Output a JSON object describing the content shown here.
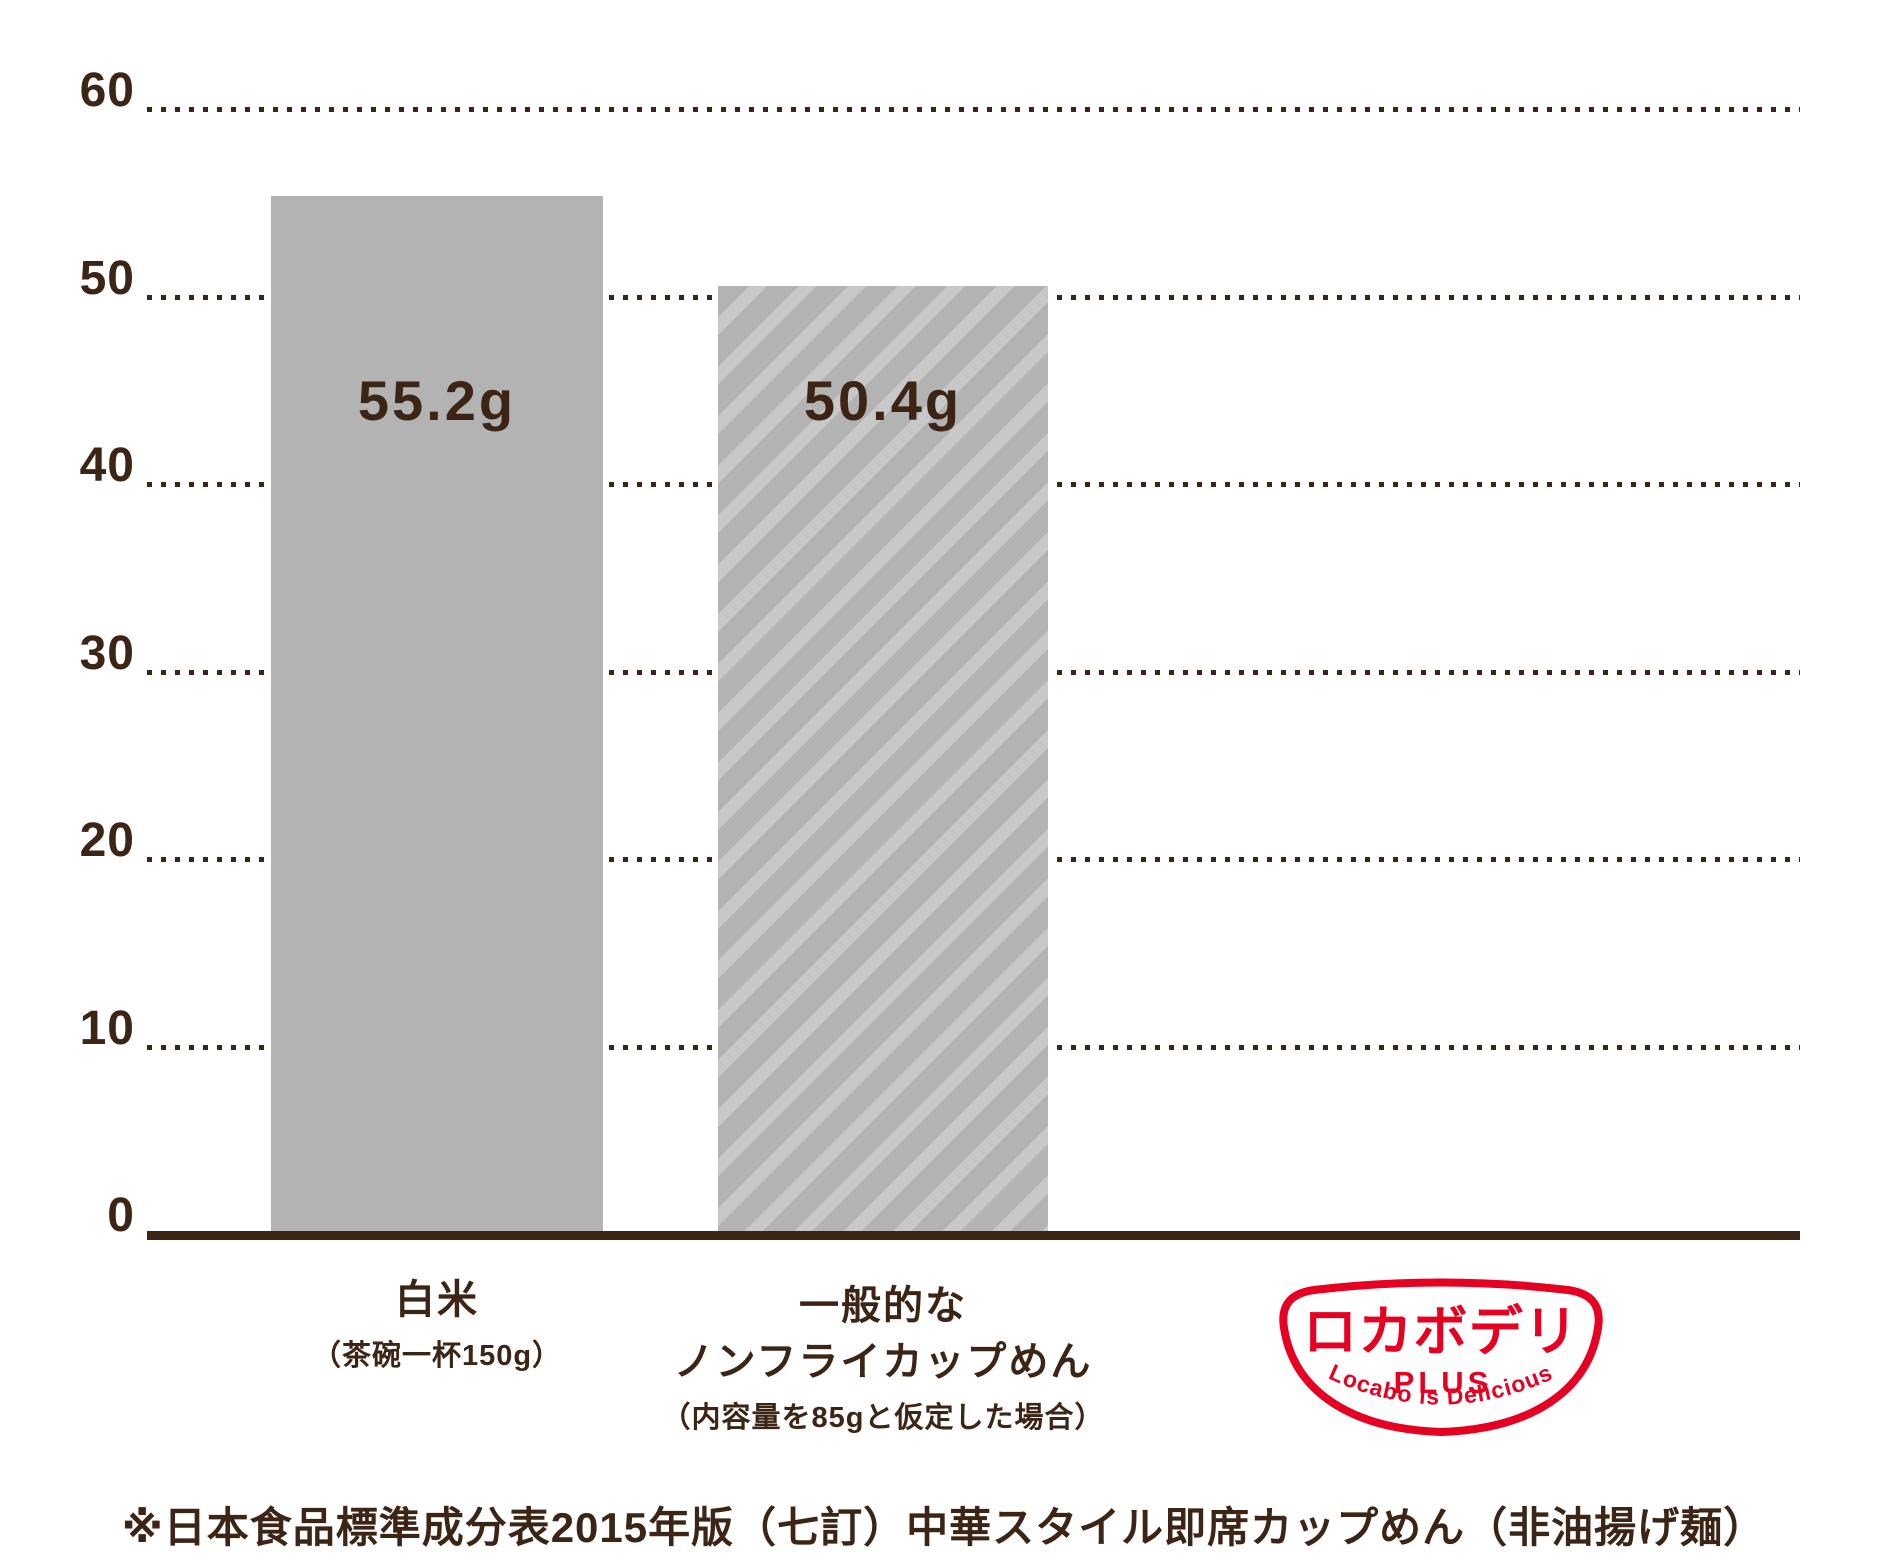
{
  "chart_data": {
    "type": "bar",
    "title": "",
    "xlabel": "",
    "ylabel": "",
    "ylim": [
      0,
      60
    ],
    "yticks": [
      60,
      50,
      40,
      30,
      20,
      10,
      0
    ],
    "grid": "horizontal-dotted",
    "legend": "none",
    "categories": [
      "白米（茶碗一杯150g）",
      "一般的なノンフライカップめん（内容量を85gと仮定した場合）"
    ],
    "values": [
      55.2,
      50.4
    ],
    "bars": [
      {
        "value": 55.2,
        "value_label": "55.2g",
        "fill": "solid",
        "label_lines": [
          "白米"
        ],
        "label_sub": "（茶碗一杯150g）"
      },
      {
        "value": 50.4,
        "value_label": "50.4g",
        "fill": "diagonal-stripes",
        "label_lines": [
          "一般的な",
          "ノンフライカップめん"
        ],
        "label_sub": "（内容量を85gと仮定した場合）"
      }
    ]
  },
  "logo": {
    "title": "ロカボデリ",
    "subtitle": "PLUS",
    "tagline": "Locabo is Delicious"
  },
  "footnote": "※日本食品標準成分表2015年版（七訂）中華スタイル即席カップめん（非油揚げ麺）",
  "colors": {
    "text_brown": "#3d2516",
    "bar_gray": "#b3b3b3",
    "stripe_gray": "#c8c8c8",
    "logo_red": "#e60021"
  }
}
